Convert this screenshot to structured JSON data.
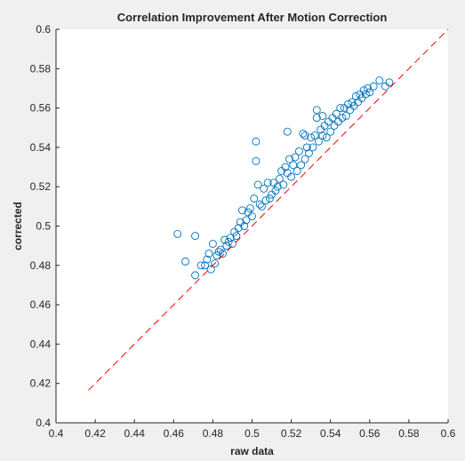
{
  "chart_data": {
    "type": "scatter",
    "title": "Correlation Improvement After Motion Correction",
    "xlabel": "raw data",
    "ylabel": "corrected",
    "xlim": [
      0.4,
      0.6
    ],
    "ylim": [
      0.4,
      0.6
    ],
    "xticks": [
      0.4,
      0.42,
      0.44,
      0.46,
      0.48,
      0.5,
      0.52,
      0.54,
      0.56,
      0.58,
      0.6
    ],
    "yticks": [
      0.4,
      0.42,
      0.44,
      0.46,
      0.48,
      0.5,
      0.52,
      0.54,
      0.56,
      0.58,
      0.6
    ],
    "xtick_labels": [
      "0.4",
      "0.42",
      "0.44",
      "0.46",
      "0.48",
      "0.5",
      "0.52",
      "0.54",
      "0.56",
      "0.58",
      "0.6"
    ],
    "ytick_labels": [
      "0.4",
      "0.42",
      "0.44",
      "0.46",
      "0.48",
      "0.5",
      "0.52",
      "0.54",
      "0.56",
      "0.58",
      "0.6"
    ],
    "grid": false,
    "colors": {
      "marker": "#0072bd",
      "reference_line": "#ff0000",
      "axes_background": "#ffffff",
      "figure_background": "#f0f0f0"
    },
    "reference_line": {
      "style": "dashed",
      "x": [
        0.4166,
        0.6
      ],
      "y": [
        0.4166,
        0.6
      ]
    },
    "series": [
      {
        "marker": "open-circle",
        "points": [
          [
            0.462,
            0.496
          ],
          [
            0.466,
            0.482
          ],
          [
            0.471,
            0.475
          ],
          [
            0.471,
            0.495
          ],
          [
            0.474,
            0.48
          ],
          [
            0.476,
            0.48
          ],
          [
            0.477,
            0.483
          ],
          [
            0.478,
            0.486
          ],
          [
            0.479,
            0.478
          ],
          [
            0.48,
            0.491
          ],
          [
            0.481,
            0.481
          ],
          [
            0.482,
            0.485
          ],
          [
            0.483,
            0.487
          ],
          [
            0.484,
            0.488
          ],
          [
            0.485,
            0.486
          ],
          [
            0.486,
            0.493
          ],
          [
            0.487,
            0.49
          ],
          [
            0.488,
            0.492
          ],
          [
            0.489,
            0.494
          ],
          [
            0.49,
            0.491
          ],
          [
            0.491,
            0.497
          ],
          [
            0.492,
            0.495
          ],
          [
            0.493,
            0.499
          ],
          [
            0.494,
            0.502
          ],
          [
            0.495,
            0.508
          ],
          [
            0.496,
            0.5
          ],
          [
            0.497,
            0.503
          ],
          [
            0.498,
            0.507
          ],
          [
            0.499,
            0.509
          ],
          [
            0.5,
            0.505
          ],
          [
            0.501,
            0.514
          ],
          [
            0.502,
            0.533
          ],
          [
            0.502,
            0.543
          ],
          [
            0.503,
            0.521
          ],
          [
            0.504,
            0.511
          ],
          [
            0.505,
            0.51
          ],
          [
            0.506,
            0.519
          ],
          [
            0.507,
            0.513
          ],
          [
            0.508,
            0.522
          ],
          [
            0.509,
            0.514
          ],
          [
            0.51,
            0.516
          ],
          [
            0.511,
            0.522
          ],
          [
            0.512,
            0.518
          ],
          [
            0.513,
            0.52
          ],
          [
            0.514,
            0.524
          ],
          [
            0.515,
            0.528
          ],
          [
            0.516,
            0.521
          ],
          [
            0.517,
            0.53
          ],
          [
            0.518,
            0.527
          ],
          [
            0.519,
            0.534
          ],
          [
            0.52,
            0.525
          ],
          [
            0.521,
            0.531
          ],
          [
            0.522,
            0.535
          ],
          [
            0.523,
            0.528
          ],
          [
            0.524,
            0.538
          ],
          [
            0.525,
            0.531
          ],
          [
            0.526,
            0.547
          ],
          [
            0.527,
            0.534
          ],
          [
            0.528,
            0.54
          ],
          [
            0.529,
            0.537
          ],
          [
            0.53,
            0.545
          ],
          [
            0.531,
            0.54
          ],
          [
            0.532,
            0.546
          ],
          [
            0.533,
            0.559
          ],
          [
            0.533,
            0.555
          ],
          [
            0.534,
            0.543
          ],
          [
            0.535,
            0.549
          ],
          [
            0.536,
            0.546
          ],
          [
            0.537,
            0.551
          ],
          [
            0.538,
            0.545
          ],
          [
            0.539,
            0.553
          ],
          [
            0.54,
            0.548
          ],
          [
            0.541,
            0.555
          ],
          [
            0.542,
            0.551
          ],
          [
            0.543,
            0.557
          ],
          [
            0.544,
            0.553
          ],
          [
            0.545,
            0.56
          ],
          [
            0.546,
            0.555
          ],
          [
            0.547,
            0.56
          ],
          [
            0.548,
            0.556
          ],
          [
            0.549,
            0.562
          ],
          [
            0.55,
            0.559
          ],
          [
            0.551,
            0.563
          ],
          [
            0.552,
            0.561
          ],
          [
            0.553,
            0.566
          ],
          [
            0.554,
            0.563
          ],
          [
            0.555,
            0.567
          ],
          [
            0.556,
            0.565
          ],
          [
            0.557,
            0.569
          ],
          [
            0.558,
            0.567
          ],
          [
            0.559,
            0.57
          ],
          [
            0.56,
            0.568
          ],
          [
            0.562,
            0.571
          ],
          [
            0.565,
            0.574
          ],
          [
            0.568,
            0.571
          ],
          [
            0.57,
            0.573
          ],
          [
            0.527,
            0.546
          ],
          [
            0.518,
            0.548
          ],
          [
            0.528,
            0.54
          ],
          [
            0.536,
            0.556
          ]
        ]
      }
    ]
  }
}
